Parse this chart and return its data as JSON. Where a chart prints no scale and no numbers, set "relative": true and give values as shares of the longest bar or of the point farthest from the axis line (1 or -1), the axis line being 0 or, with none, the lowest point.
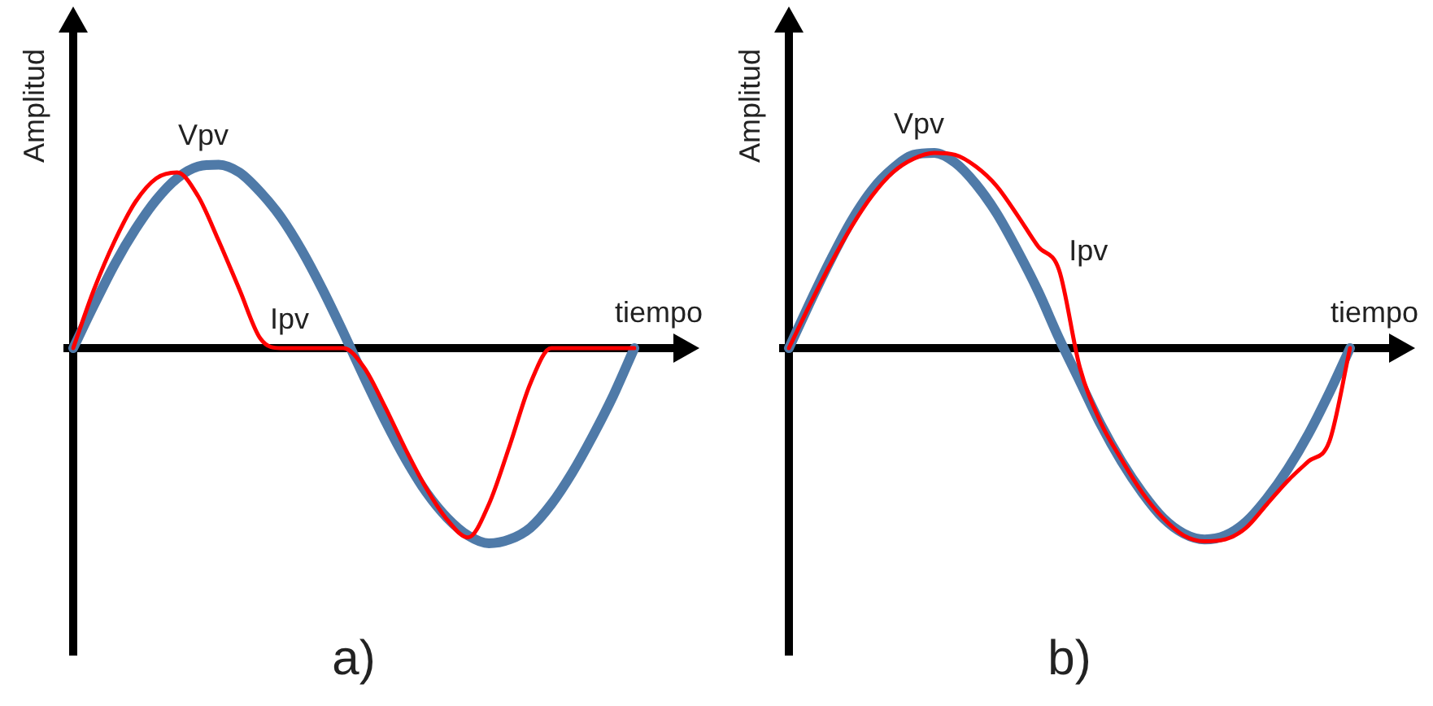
{
  "chart_data": [
    {
      "type": "line",
      "title": "a)",
      "xlabel": "tiempo",
      "ylabel": "Amplitud",
      "relative": true,
      "legend": false,
      "marker": "none",
      "categories": [
        null,
        null,
        null,
        null,
        null,
        null,
        null,
        null,
        null,
        null,
        null,
        null,
        null,
        null,
        null,
        null,
        null,
        null,
        null,
        null,
        null,
        null,
        null,
        null,
        null,
        null,
        null,
        null
      ],
      "series": [
        {
          "name": "Vpv",
          "color": "#4f7aa8",
          "values": [
            0,
            0.22,
            0.43,
            0.61,
            0.76,
            0.87,
            0.93,
            0.94,
            0.9,
            0.8,
            0.67,
            0.5,
            0.3,
            0.08,
            -0.15,
            -0.37,
            -0.57,
            -0.74,
            -0.87,
            -0.96,
            -1,
            -0.98,
            -0.92,
            -0.8,
            -0.64,
            -0.45,
            -0.24,
            0
          ]
        },
        {
          "name": "Ipv",
          "color": "#ff0000",
          "values": [
            0,
            0.3,
            0.55,
            0.75,
            0.87,
            0.9,
            0.78,
            0.55,
            0.3,
            0.05,
            0,
            0,
            0,
            0,
            -0.1,
            -0.3,
            -0.52,
            -0.72,
            -0.88,
            -0.97,
            -0.8,
            -0.5,
            -0.18,
            0,
            0,
            0,
            0,
            0
          ]
        }
      ]
    },
    {
      "type": "line",
      "title": "b)",
      "xlabel": "tiempo",
      "ylabel": "Amplitud",
      "relative": true,
      "legend": false,
      "marker": "none",
      "categories": [
        null,
        null,
        null,
        null,
        null,
        null,
        null,
        null,
        null,
        null,
        null,
        null,
        null,
        null,
        null,
        null,
        null,
        null,
        null,
        null,
        null,
        null,
        null,
        null,
        null,
        null,
        null,
        null
      ],
      "series": [
        {
          "name": "Vpv",
          "color": "#4f7aa8",
          "values": [
            0,
            0.23,
            0.45,
            0.65,
            0.81,
            0.92,
            0.99,
            1,
            0.95,
            0.84,
            0.69,
            0.5,
            0.29,
            0.05,
            -0.17,
            -0.39,
            -0.58,
            -0.74,
            -0.87,
            -0.95,
            -0.98,
            -0.96,
            -0.89,
            -0.77,
            -0.62,
            -0.44,
            -0.23,
            0
          ]
        },
        {
          "name": "Ipv",
          "color": "#ff0000",
          "values": [
            0,
            0.22,
            0.43,
            0.62,
            0.78,
            0.9,
            0.97,
            1,
            0.99,
            0.93,
            0.83,
            0.68,
            0.52,
            0.4,
            -0.1,
            -0.38,
            -0.57,
            -0.74,
            -0.87,
            -0.96,
            -0.99,
            -0.98,
            -0.92,
            -0.8,
            -0.68,
            -0.58,
            -0.48,
            0
          ]
        }
      ]
    }
  ]
}
